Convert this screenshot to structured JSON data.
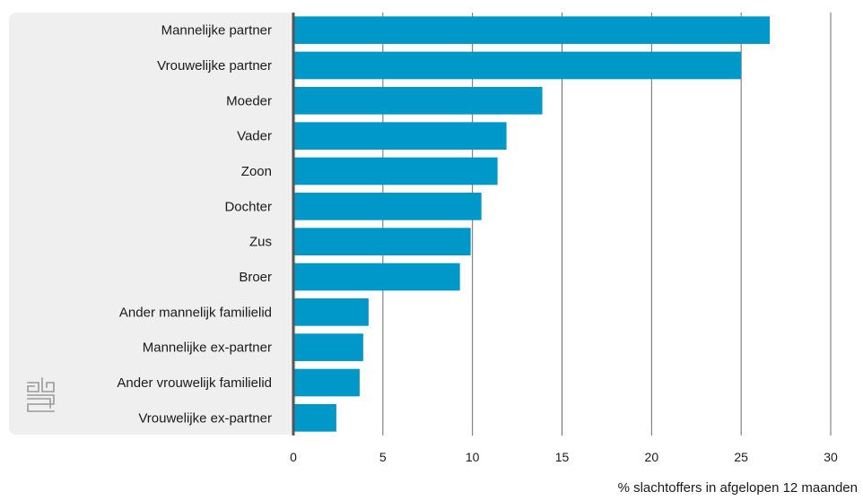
{
  "chart_data": {
    "type": "bar",
    "orientation": "horizontal",
    "categories": [
      "Mannelijke partner",
      "Vrouwelijke partner",
      "Moeder",
      "Vader",
      "Zoon",
      "Dochter",
      "Zus",
      "Broer",
      "Ander mannelijk familielid",
      "Mannelijke ex-partner",
      "Ander vrouwelijk familielid",
      "Vrouwelijke ex-partner"
    ],
    "values": [
      26.6,
      25.0,
      13.9,
      11.9,
      11.4,
      10.5,
      9.9,
      9.3,
      4.2,
      3.9,
      3.7,
      2.4
    ],
    "xlim": [
      0,
      30
    ],
    "xticks": [
      "0",
      "5",
      "10",
      "15",
      "20",
      "25",
      "30"
    ],
    "xlabel": "% slachtoffers in afgelopen 12 maanden",
    "ylabel": "",
    "title": "",
    "grid": "vertical",
    "bar_color": "#0098c8",
    "label_panel_color": "#efefef",
    "axis_color": "#555555",
    "logo_icon": "cbs-logo-icon"
  }
}
